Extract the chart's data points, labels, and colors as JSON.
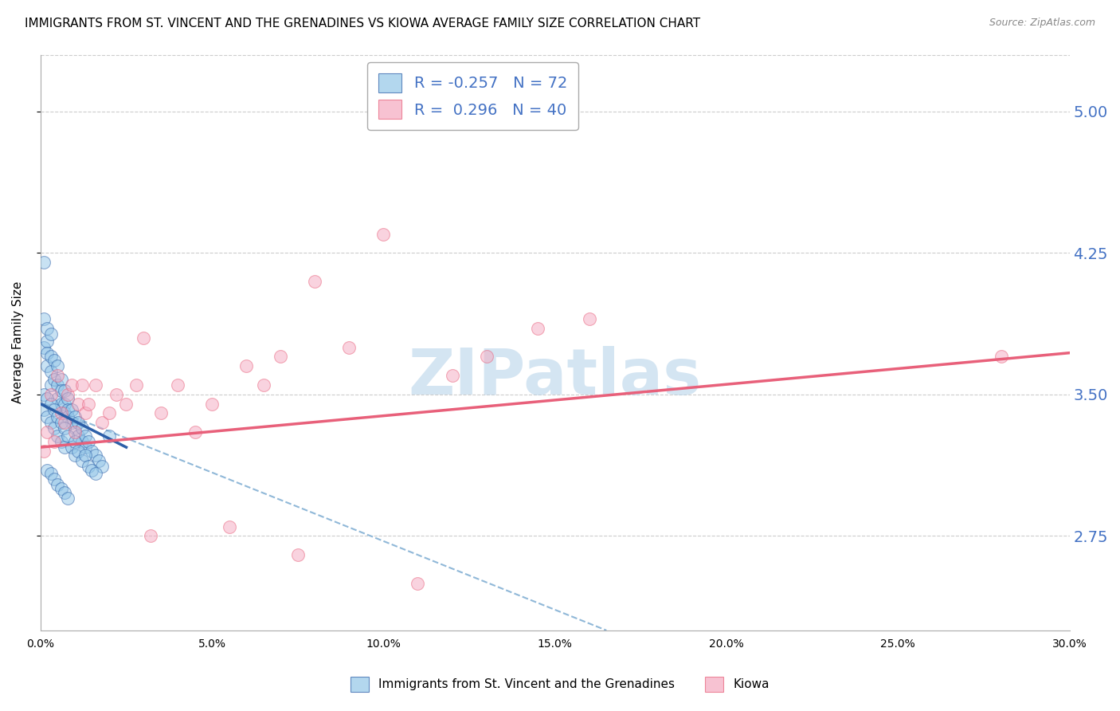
{
  "title": "IMMIGRANTS FROM ST. VINCENT AND THE GRENADINES VS KIOWA AVERAGE FAMILY SIZE CORRELATION CHART",
  "source": "Source: ZipAtlas.com",
  "ylabel": "Average Family Size",
  "xlim": [
    0.0,
    0.3
  ],
  "ylim": [
    2.25,
    5.3
  ],
  "yticks": [
    2.75,
    3.5,
    4.25,
    5.0
  ],
  "xticks": [
    0.0,
    0.05,
    0.1,
    0.15,
    0.2,
    0.25,
    0.3
  ],
  "xtick_labels": [
    "0.0%",
    "5.0%",
    "10.0%",
    "15.0%",
    "20.0%",
    "25.0%",
    "30.0%"
  ],
  "blue_scatter_x": [
    0.001,
    0.001,
    0.001,
    0.002,
    0.002,
    0.002,
    0.002,
    0.003,
    0.003,
    0.003,
    0.003,
    0.004,
    0.004,
    0.005,
    0.005,
    0.005,
    0.006,
    0.006,
    0.006,
    0.007,
    0.007,
    0.007,
    0.008,
    0.008,
    0.008,
    0.009,
    0.009,
    0.01,
    0.01,
    0.011,
    0.011,
    0.012,
    0.012,
    0.013,
    0.013,
    0.014,
    0.015,
    0.016,
    0.017,
    0.018,
    0.001,
    0.001,
    0.002,
    0.002,
    0.003,
    0.003,
    0.004,
    0.004,
    0.005,
    0.005,
    0.006,
    0.006,
    0.007,
    0.007,
    0.008,
    0.009,
    0.01,
    0.01,
    0.011,
    0.012,
    0.013,
    0.014,
    0.015,
    0.016,
    0.002,
    0.003,
    0.004,
    0.005,
    0.006,
    0.007,
    0.008,
    0.02
  ],
  "blue_scatter_y": [
    4.2,
    3.9,
    3.75,
    3.85,
    3.78,
    3.72,
    3.65,
    3.82,
    3.7,
    3.62,
    3.55,
    3.68,
    3.58,
    3.65,
    3.55,
    3.48,
    3.58,
    3.52,
    3.45,
    3.52,
    3.45,
    3.4,
    3.48,
    3.42,
    3.38,
    3.42,
    3.35,
    3.38,
    3.32,
    3.35,
    3.28,
    3.32,
    3.25,
    3.28,
    3.22,
    3.25,
    3.2,
    3.18,
    3.15,
    3.12,
    3.5,
    3.42,
    3.48,
    3.38,
    3.45,
    3.35,
    3.42,
    3.32,
    3.38,
    3.28,
    3.35,
    3.25,
    3.32,
    3.22,
    3.28,
    3.22,
    3.25,
    3.18,
    3.2,
    3.15,
    3.18,
    3.12,
    3.1,
    3.08,
    3.1,
    3.08,
    3.05,
    3.02,
    3.0,
    2.98,
    2.95,
    3.28
  ],
  "pink_scatter_x": [
    0.001,
    0.002,
    0.003,
    0.004,
    0.005,
    0.006,
    0.007,
    0.008,
    0.009,
    0.01,
    0.011,
    0.012,
    0.013,
    0.014,
    0.016,
    0.018,
    0.02,
    0.022,
    0.025,
    0.028,
    0.03,
    0.032,
    0.035,
    0.04,
    0.045,
    0.05,
    0.055,
    0.06,
    0.065,
    0.07,
    0.075,
    0.08,
    0.09,
    0.1,
    0.11,
    0.12,
    0.13,
    0.145,
    0.16,
    0.28
  ],
  "pink_scatter_y": [
    3.2,
    3.3,
    3.5,
    3.25,
    3.6,
    3.4,
    3.35,
    3.5,
    3.55,
    3.3,
    3.45,
    3.55,
    3.4,
    3.45,
    3.55,
    3.35,
    3.4,
    3.5,
    3.45,
    3.55,
    3.8,
    2.75,
    3.4,
    3.55,
    3.3,
    3.45,
    2.8,
    3.65,
    3.55,
    3.7,
    2.65,
    4.1,
    3.75,
    4.35,
    2.5,
    3.6,
    3.7,
    3.85,
    3.9,
    3.7
  ],
  "blue_line_x": [
    0.0,
    0.025
  ],
  "blue_line_y": [
    3.45,
    3.22
  ],
  "pink_line_x": [
    0.0,
    0.3
  ],
  "pink_line_y": [
    3.22,
    3.72
  ],
  "dashed_line_x": [
    0.0,
    0.165
  ],
  "dashed_line_y": [
    3.45,
    2.25
  ],
  "blue_color": "#93c6e8",
  "pink_color": "#f4a8c0",
  "blue_line_color": "#2c5fa8",
  "pink_line_color": "#e8607a",
  "dashed_line_color": "#90b8d8",
  "legend_r_blue": "-0.257",
  "legend_n_blue": "72",
  "legend_r_pink": "0.296",
  "legend_n_pink": "40",
  "watermark": "ZIPatlas",
  "watermark_color": "#b8d4ea",
  "title_fontsize": 11,
  "axis_label_fontsize": 11,
  "tick_fontsize": 10,
  "right_tick_color": "#4472c4",
  "legend_x_blue": "Immigrants from St. Vincent and the Grenadines",
  "legend_x_pink": "Kiowa"
}
